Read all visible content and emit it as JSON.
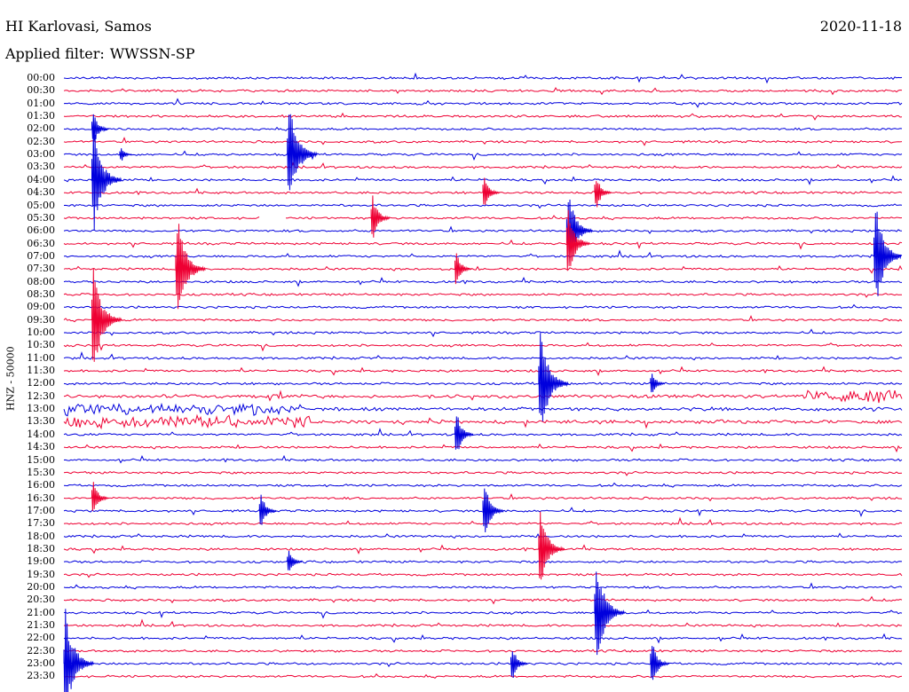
{
  "header": {
    "station": "HI Karlovasi, Samos",
    "date": "2020-11-18",
    "filter_label": "Applied filter:",
    "filter_value": "WWSSN-SP"
  },
  "channel_label": "HNZ - 50000",
  "colors": {
    "blue_trace": "#0000dd",
    "red_trace": "#ee0033",
    "text": "#000000",
    "background": "#ffffff"
  },
  "chart_data": {
    "type": "line",
    "description_kind": "helicorder",
    "rows": [
      "00:00",
      "00:30",
      "01:00",
      "01:30",
      "02:00",
      "02:30",
      "03:00",
      "03:30",
      "04:00",
      "04:30",
      "05:00",
      "05:30",
      "06:00",
      "06:30",
      "07:00",
      "07:30",
      "08:00",
      "08:30",
      "09:00",
      "09:30",
      "10:00",
      "10:30",
      "11:00",
      "11:30",
      "12:00",
      "12:30",
      "13:00",
      "13:30",
      "14:00",
      "14:30",
      "15:00",
      "15:30",
      "16:00",
      "16:30",
      "17:00",
      "17:30",
      "18:00",
      "18:30",
      "19:00",
      "19:30",
      "20:00",
      "20:30",
      "21:00",
      "21:30",
      "22:00",
      "22:30",
      "23:00",
      "23:30"
    ],
    "row_minutes": 30,
    "color_cycle": [
      "blue",
      "red"
    ],
    "events": [
      {
        "row": "02:00",
        "minute": 1,
        "amplitude": 0.4
      },
      {
        "row": "03:00",
        "minute": 2,
        "amplitude": 0.2
      },
      {
        "row": "03:00",
        "minute": 8,
        "amplitude": 1.0
      },
      {
        "row": "04:00",
        "minute": 1,
        "amplitude": 1.0
      },
      {
        "row": "04:30",
        "minute": 15,
        "amplitude": 0.4
      },
      {
        "row": "04:30",
        "minute": 19,
        "amplitude": 0.4
      },
      {
        "row": "05:30",
        "minute": 11,
        "amplitude": 0.5
      },
      {
        "row": "06:00",
        "minute": 18,
        "amplitude": 0.8
      },
      {
        "row": "06:30",
        "minute": 18,
        "amplitude": 0.7
      },
      {
        "row": "07:00",
        "minute": 29,
        "amplitude": 1.0
      },
      {
        "row": "07:30",
        "minute": 4,
        "amplitude": 1.0
      },
      {
        "row": "07:30",
        "minute": 14,
        "amplitude": 0.4
      },
      {
        "row": "09:30",
        "minute": 1,
        "amplitude": 1.0
      },
      {
        "row": "12:00",
        "minute": 17,
        "amplitude": 1.0
      },
      {
        "row": "12:00",
        "minute": 21,
        "amplitude": 0.3
      },
      {
        "row": "14:00",
        "minute": 14,
        "amplitude": 0.5
      },
      {
        "row": "16:30",
        "minute": 1,
        "amplitude": 0.4
      },
      {
        "row": "17:00",
        "minute": 7,
        "amplitude": 0.4
      },
      {
        "row": "17:00",
        "minute": 15,
        "amplitude": 0.6
      },
      {
        "row": "18:30",
        "minute": 17,
        "amplitude": 0.8
      },
      {
        "row": "19:00",
        "minute": 8,
        "amplitude": 0.3
      },
      {
        "row": "21:00",
        "minute": 19,
        "amplitude": 1.0
      },
      {
        "row": "23:00",
        "minute": 0,
        "amplitude": 1.0
      },
      {
        "row": "23:00",
        "minute": 16,
        "amplitude": 0.4
      },
      {
        "row": "23:00",
        "minute": 21,
        "amplitude": 0.5
      }
    ],
    "noisy_rows": [
      "12:30",
      "13:00",
      "13:30"
    ],
    "gap": {
      "row": "05:30",
      "from_minute": 7,
      "to_minute": 8
    }
  }
}
